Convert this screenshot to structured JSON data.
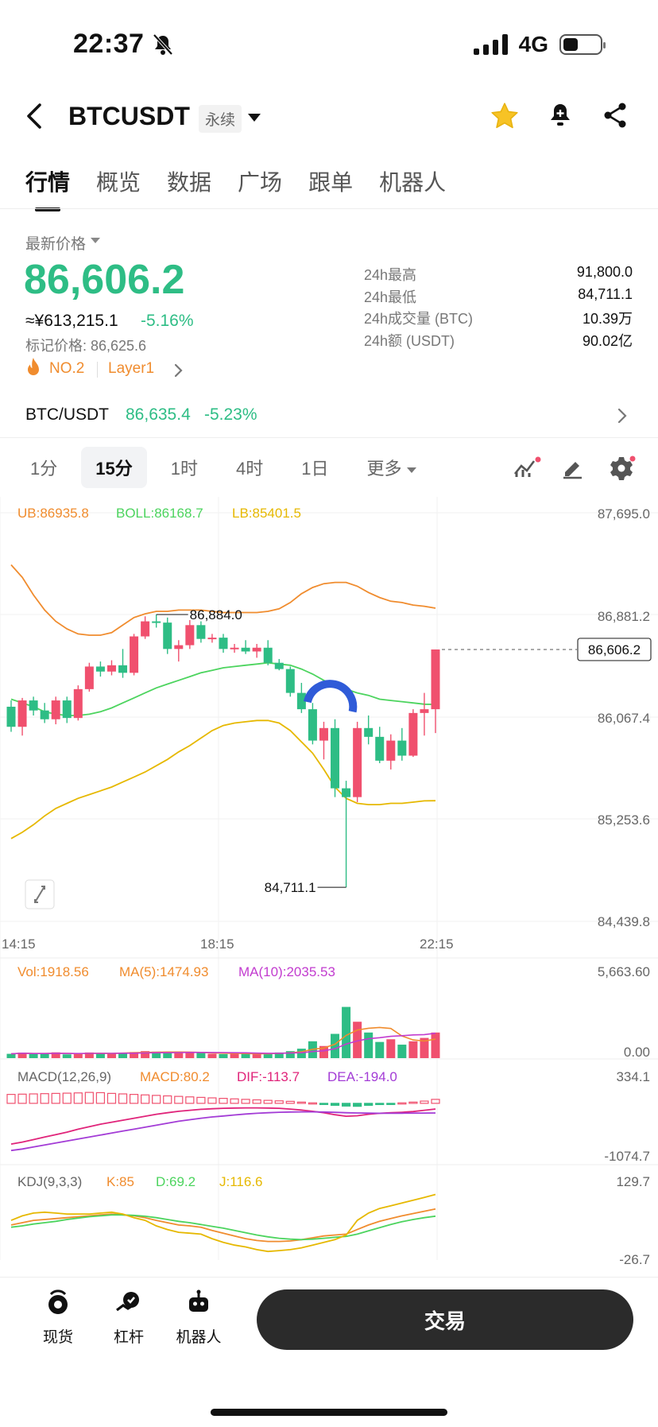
{
  "status": {
    "time": "22:37",
    "network": "4G"
  },
  "header": {
    "symbol": "BTCUSDT",
    "contract_type": "永续"
  },
  "tabs": [
    {
      "label": "行情",
      "active": true
    },
    {
      "label": "概览"
    },
    {
      "label": "数据"
    },
    {
      "label": "广场"
    },
    {
      "label": "跟单"
    },
    {
      "label": "机器人"
    }
  ],
  "price": {
    "label": "最新价格",
    "last": "86,606.2",
    "cny": "≈¥613,215.1",
    "change": "-5.16%",
    "mark": "标记价格: 86,625.6",
    "rank": "NO.2",
    "tag": "Layer1",
    "up_color": "#2ebd85",
    "down_color": "#f0506e"
  },
  "stats": [
    {
      "label": "24h最高",
      "value": "91,800.0"
    },
    {
      "label": "24h最低",
      "value": "84,711.1"
    },
    {
      "label": "24h成交量 (BTC)",
      "value": "10.39万"
    },
    {
      "label": "24h额 (USDT)",
      "value": "90.02亿"
    }
  ],
  "pair": {
    "label": "BTC/USDT",
    "price": "86,635.4",
    "change": "-5.23%"
  },
  "intervals": [
    {
      "label": "1分"
    },
    {
      "label": "15分",
      "active": true
    },
    {
      "label": "1时"
    },
    {
      "label": "4时"
    },
    {
      "label": "1日"
    },
    {
      "label": "更多"
    }
  ],
  "icons": {
    "toolbar": [
      "indicator-icon",
      "draw-icon",
      "gear-icon"
    ],
    "header": [
      "back-icon",
      "star-icon",
      "bell-icon",
      "share-icon"
    ]
  },
  "chart_data": {
    "type": "candlestick",
    "interval": "15分",
    "x_ticks": [
      "14:15",
      "18:15",
      "22:15"
    ],
    "y_ticks": [
      "87,695.0",
      "86,881.2",
      "86,067.4",
      "85,253.6",
      "84,439.8"
    ],
    "ylim": [
      84439.8,
      87695.0
    ],
    "current_price": "86,606.2",
    "high_marker": "86,884.0",
    "low_marker": "84,711.1",
    "boll": {
      "ub": "UB:86935.8",
      "mid": "BOLL:86168.7",
      "lb": "LB:85401.5"
    },
    "candles": [
      [
        86150,
        86200,
        85950,
        85990
      ],
      [
        85990,
        86220,
        85920,
        86200
      ],
      [
        86200,
        86230,
        86080,
        86120
      ],
      [
        86120,
        86180,
        86020,
        86050
      ],
      [
        86050,
        86230,
        86010,
        86200
      ],
      [
        86200,
        86230,
        86020,
        86060
      ],
      [
        86060,
        86320,
        86040,
        86290
      ],
      [
        86290,
        86500,
        86270,
        86470
      ],
      [
        86470,
        86510,
        86390,
        86430
      ],
      [
        86430,
        86520,
        86400,
        86480
      ],
      [
        86480,
        86610,
        86380,
        86420
      ],
      [
        86420,
        86730,
        86400,
        86710
      ],
      [
        86710,
        86870,
        86690,
        86830
      ],
      [
        86830,
        86884,
        86780,
        86820
      ],
      [
        86820,
        86860,
        86570,
        86610
      ],
      [
        86610,
        86680,
        86510,
        86640
      ],
      [
        86640,
        86840,
        86610,
        86800
      ],
      [
        86800,
        86830,
        86660,
        86690
      ],
      [
        86690,
        86730,
        86660,
        86700
      ],
      [
        86700,
        86730,
        86580,
        86610
      ],
      [
        86610,
        86650,
        86580,
        86620
      ],
      [
        86620,
        86680,
        86570,
        86590
      ],
      [
        86590,
        86650,
        86540,
        86620
      ],
      [
        86620,
        86680,
        86480,
        86500
      ],
      [
        86500,
        86530,
        86440,
        86450
      ],
      [
        86450,
        86470,
        86230,
        86260
      ],
      [
        86260,
        86340,
        86100,
        86130
      ],
      [
        86130,
        86180,
        85850,
        85880
      ],
      [
        85880,
        86030,
        85730,
        85980
      ],
      [
        85980,
        86050,
        85430,
        85500
      ],
      [
        85500,
        85560,
        84711,
        85430
      ],
      [
        85430,
        86030,
        85390,
        85980
      ],
      [
        85980,
        86080,
        85850,
        85910
      ],
      [
        85910,
        85990,
        85700,
        85720
      ],
      [
        85720,
        85930,
        85650,
        85880
      ],
      [
        85880,
        85980,
        85720,
        85760
      ],
      [
        85760,
        86130,
        85750,
        86100
      ],
      [
        86100,
        86260,
        85920,
        86130
      ],
      [
        86130,
        86606,
        85940,
        86606
      ]
    ],
    "upper_band": [
      87280,
      87180,
      87040,
      86920,
      86830,
      86770,
      86730,
      86720,
      86720,
      86740,
      86800,
      86860,
      86890,
      86910,
      86910,
      86920,
      86920,
      86920,
      86910,
      86900,
      86900,
      86900,
      86900,
      86910,
      86930,
      86980,
      87050,
      87100,
      87130,
      87140,
      87140,
      87110,
      87060,
      87020,
      86990,
      86980,
      86960,
      86950,
      86935
    ],
    "middle_band": [
      86210,
      86180,
      86150,
      86110,
      86090,
      86080,
      86080,
      86090,
      86110,
      86140,
      86180,
      86220,
      86260,
      86300,
      86330,
      86360,
      86390,
      86420,
      86440,
      86460,
      86470,
      86480,
      86490,
      86500,
      86490,
      86480,
      86450,
      86410,
      86360,
      86320,
      86290,
      86260,
      86240,
      86210,
      86200,
      86190,
      86180,
      86170,
      86168
    ],
    "lower_band": [
      85100,
      85150,
      85210,
      85280,
      85340,
      85380,
      85420,
      85450,
      85480,
      85510,
      85550,
      85590,
      85630,
      85680,
      85730,
      85790,
      85840,
      85900,
      85960,
      86000,
      86020,
      86030,
      86040,
      86040,
      86020,
      85960,
      85870,
      85780,
      85650,
      85510,
      85420,
      85380,
      85370,
      85370,
      85380,
      85380,
      85390,
      85400,
      85401
    ],
    "volume": {
      "label": "Vol:1918.56",
      "ma5": "MA(5):1474.93",
      "ma10": "MA(10):2035.53",
      "ylim": [
        0,
        5663.6
      ],
      "y_ticks": [
        "5,663.60",
        "0.00"
      ],
      "values": [
        320,
        410,
        300,
        350,
        430,
        280,
        300,
        420,
        380,
        360,
        400,
        450,
        520,
        480,
        430,
        380,
        430,
        400,
        320,
        300,
        330,
        350,
        300,
        380,
        420,
        520,
        700,
        1250,
        900,
        1800,
        3800,
        2700,
        1900,
        1200,
        1400,
        1000,
        1250,
        1500,
        1900
      ]
    },
    "macd": {
      "label": "MACD(12,26,9)",
      "macd": "MACD:80.2",
      "dif": "DIF:-113.7",
      "dea": "DEA:-194.0",
      "ylim": [
        -1074.7,
        334.1
      ],
      "y_ticks": [
        "334.1",
        "-1074.7"
      ],
      "hist": [
        180,
        185,
        190,
        195,
        200,
        205,
        210,
        220,
        215,
        200,
        190,
        180,
        170,
        160,
        150,
        140,
        130,
        120,
        110,
        100,
        90,
        80,
        70,
        60,
        50,
        40,
        25,
        10,
        -20,
        -40,
        -55,
        -60,
        -40,
        -25,
        -15,
        10,
        25,
        45,
        80
      ],
      "dif_line": [
        -820,
        -780,
        -730,
        -680,
        -630,
        -580,
        -520,
        -470,
        -420,
        -380,
        -340,
        -300,
        -260,
        -220,
        -190,
        -160,
        -140,
        -120,
        -110,
        -100,
        -95,
        -92,
        -92,
        -95,
        -100,
        -115,
        -135,
        -160,
        -190,
        -230,
        -260,
        -250,
        -220,
        -200,
        -190,
        -180,
        -165,
        -140,
        -113.7
      ],
      "dea_line": [
        -950,
        -920,
        -880,
        -840,
        -800,
        -760,
        -720,
        -680,
        -640,
        -600,
        -560,
        -520,
        -480,
        -440,
        -400,
        -360,
        -330,
        -300,
        -275,
        -255,
        -235,
        -215,
        -200,
        -190,
        -180,
        -175,
        -172,
        -172,
        -175,
        -182,
        -190,
        -195,
        -198,
        -200,
        -200,
        -199,
        -198,
        -196,
        -194
      ]
    },
    "kdj": {
      "label": "KDJ(9,3,3)",
      "k_label": "K:85",
      "d_label": "D:69.2",
      "j_label": "J:116.6",
      "ylim": [
        -26.7,
        129.7
      ],
      "y_ticks": [
        "129.7",
        "-26.7"
      ],
      "k": [
        50,
        55,
        60,
        62,
        64,
        66,
        68,
        70,
        72,
        74,
        72,
        70,
        66,
        60,
        55,
        50,
        48,
        45,
        38,
        32,
        26,
        20,
        16,
        14,
        14,
        15,
        18,
        22,
        26,
        28,
        30,
        40,
        50,
        58,
        64,
        70,
        75,
        80,
        85
      ],
      "d": [
        45,
        48,
        52,
        55,
        58,
        62,
        65,
        68,
        70,
        72,
        72,
        71,
        69,
        66,
        62,
        58,
        55,
        51,
        47,
        43,
        38,
        33,
        28,
        24,
        21,
        19,
        18,
        19,
        21,
        23,
        25,
        30,
        37,
        44,
        51,
        57,
        62,
        66,
        69.2
      ],
      "j": [
        60,
        70,
        76,
        78,
        76,
        74,
        74,
        74,
        76,
        78,
        74,
        66,
        60,
        48,
        40,
        34,
        32,
        30,
        20,
        12,
        6,
        2,
        -4,
        -8,
        -6,
        -4,
        0,
        6,
        12,
        18,
        28,
        60,
        76,
        86,
        92,
        98,
        104,
        110,
        116.6
      ]
    }
  },
  "bottom_nav": [
    {
      "label": "现货"
    },
    {
      "label": "杠杆"
    },
    {
      "label": "机器人"
    }
  ],
  "trade_button": "交易"
}
